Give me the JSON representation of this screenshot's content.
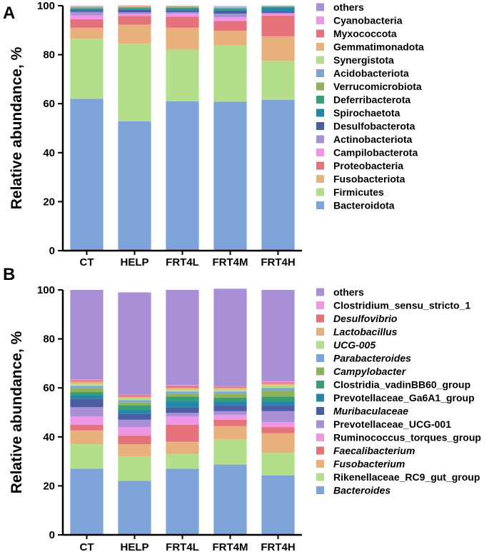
{
  "chart_data": [
    {
      "panel": "A",
      "type": "bar",
      "stacked": true,
      "ylabel": "Relative abundance, %",
      "ylim": [
        0,
        100
      ],
      "yticks": [
        0,
        20,
        40,
        60,
        80,
        100
      ],
      "categories": [
        "CT",
        "HELP",
        "FRT4L",
        "FRT4M",
        "FRT4H"
      ],
      "legend_position": "right",
      "series": [
        {
          "name": "Bacteroidota",
          "color": "#7ea3d8",
          "italic": false,
          "values": [
            62,
            52.8,
            61,
            60.8,
            61.5
          ]
        },
        {
          "name": "Firmicutes",
          "color": "#b5de8b",
          "italic": false,
          "values": [
            24.5,
            31.7,
            21,
            23,
            16
          ]
        },
        {
          "name": "Fusobacteriota",
          "color": "#e8b07a",
          "italic": false,
          "values": [
            4.5,
            7.8,
            9,
            6,
            10
          ]
        },
        {
          "name": "Proteobacteria",
          "color": "#e5727b",
          "italic": false,
          "values": [
            3.5,
            3.5,
            4.5,
            4,
            8.5
          ]
        },
        {
          "name": "Campilobacterota",
          "color": "#ef96e6",
          "italic": false,
          "values": [
            1.5,
            0.8,
            1.2,
            1.5,
            0.6
          ]
        },
        {
          "name": "Actinobacteriota",
          "color": "#a98fd6",
          "italic": false,
          "values": [
            1.5,
            0.7,
            0.7,
            1.5,
            0.5
          ]
        },
        {
          "name": "Desulfobacterota",
          "color": "#4a5ea3",
          "italic": false,
          "values": [
            0.6,
            1.0,
            0.8,
            1.2,
            0.8
          ]
        },
        {
          "name": "Spirochaetota",
          "color": "#2288a8",
          "italic": false,
          "values": [
            0.5,
            0.4,
            0.6,
            0.5,
            1.4
          ]
        },
        {
          "name": "Deferribacterota",
          "color": "#3a9e72",
          "italic": false,
          "values": [
            0.4,
            0.4,
            0.4,
            0.4,
            0.3
          ]
        },
        {
          "name": "Verrucomicrobiota",
          "color": "#8bb35a",
          "italic": false,
          "values": [
            0.3,
            0.3,
            0.3,
            0.3,
            0.2
          ]
        },
        {
          "name": "Acidobacteriota",
          "color": "#7ea3d8",
          "italic": false,
          "values": [
            0.2,
            0.2,
            0.2,
            0.2,
            0.1
          ]
        },
        {
          "name": "Synergistota",
          "color": "#b5de8b",
          "italic": false,
          "values": [
            0.1,
            0.1,
            0.1,
            0.1,
            0.05
          ]
        },
        {
          "name": "Gemmatimonadota",
          "color": "#e8b07a",
          "italic": false,
          "values": [
            0.1,
            0.1,
            0.05,
            0.1,
            0.05
          ]
        },
        {
          "name": "Myxococcota",
          "color": "#e5727b",
          "italic": false,
          "values": [
            0.1,
            0.1,
            0.05,
            0.1,
            0.05
          ]
        },
        {
          "name": "Cyanobacteria",
          "color": "#ef96e6",
          "italic": false,
          "values": [
            0.1,
            0.1,
            0.05,
            0.1,
            0.05
          ]
        },
        {
          "name": "others",
          "color": "#a98fd6",
          "italic": false,
          "values": [
            0.1,
            0.1,
            0.1,
            0.1,
            0.05
          ]
        }
      ]
    },
    {
      "panel": "B",
      "type": "bar",
      "stacked": true,
      "ylabel": "Relative abundance, %",
      "ylim": [
        0,
        100
      ],
      "yticks": [
        0,
        20,
        40,
        60,
        80,
        100
      ],
      "categories": [
        "CT",
        "HELP",
        "FRT4L",
        "FRT4M",
        "FRT4H"
      ],
      "legend_position": "right",
      "series": [
        {
          "name": "Bacteroides",
          "color": "#7ea3d8",
          "italic": true,
          "values": [
            27,
            22,
            27,
            28.7,
            24.3
          ]
        },
        {
          "name": "Rikenellaceae_RC9_gut_group",
          "color": "#b5de8b",
          "italic": false,
          "values": [
            10,
            10,
            6,
            10.3,
            9.2
          ]
        },
        {
          "name": "Fusobacterium",
          "color": "#e8b07a",
          "italic": true,
          "values": [
            5.7,
            5,
            5,
            5.4,
            8
          ]
        },
        {
          "name": "Faecalibacterium",
          "color": "#e5727b",
          "italic": true,
          "values": [
            2.3,
            3.5,
            7,
            2.6,
            2.5
          ]
        },
        {
          "name": "Ruminococcus_torques_group",
          "color": "#ef96e6",
          "italic": false,
          "values": [
            3.3,
            3.5,
            3.3,
            2.0,
            2.0
          ]
        },
        {
          "name": "Prevotellaceae_UCG-001",
          "color": "#a98fd6",
          "italic": false,
          "values": [
            3.8,
            3.0,
            1.5,
            1.5,
            4.5
          ]
        },
        {
          "name": "Muribaculaceae",
          "color": "#4a5ea3",
          "italic": true,
          "values": [
            3.5,
            2.5,
            2.2,
            2.5,
            2.5
          ]
        },
        {
          "name": "Prevotellaceae_Ga6A1_group",
          "color": "#2288a8",
          "italic": false,
          "values": [
            1.5,
            1.5,
            2.5,
            1.5,
            1.5
          ]
        },
        {
          "name": "Clostridia_vadinBB60_group",
          "color": "#3a9e72",
          "italic": false,
          "values": [
            1.2,
            2.0,
            2.0,
            1.5,
            2.0
          ]
        },
        {
          "name": "Campylobacter",
          "color": "#8bb35a",
          "italic": true,
          "values": [
            1.5,
            1.0,
            1.0,
            1.5,
            2.5
          ]
        },
        {
          "name": "Parabacteroides",
          "color": "#7ea3d8",
          "italic": true,
          "values": [
            1.0,
            1.0,
            1.0,
            1.0,
            1.0
          ]
        },
        {
          "name": "UCG-005",
          "color": "#b5de8b",
          "italic": true,
          "values": [
            1.0,
            0.8,
            0.8,
            0.8,
            1.0
          ]
        },
        {
          "name": "Lactobacillus",
          "color": "#e8b07a",
          "italic": true,
          "values": [
            0.8,
            0.6,
            0.7,
            0.7,
            0.8
          ]
        },
        {
          "name": "Desulfovibrio",
          "color": "#e5727b",
          "italic": true,
          "values": [
            0.6,
            0.6,
            0.8,
            0.5,
            0.5
          ]
        },
        {
          "name": "Clostridium_sensu_stricto_1",
          "color": "#ef96e6",
          "italic": false,
          "values": [
            0.3,
            0.3,
            0.4,
            0.2,
            0.4
          ]
        },
        {
          "name": "others",
          "color": "#a98fd6",
          "italic": false,
          "values": [
            36.5,
            41.7,
            38.8,
            39.8,
            37.3
          ]
        }
      ]
    }
  ]
}
